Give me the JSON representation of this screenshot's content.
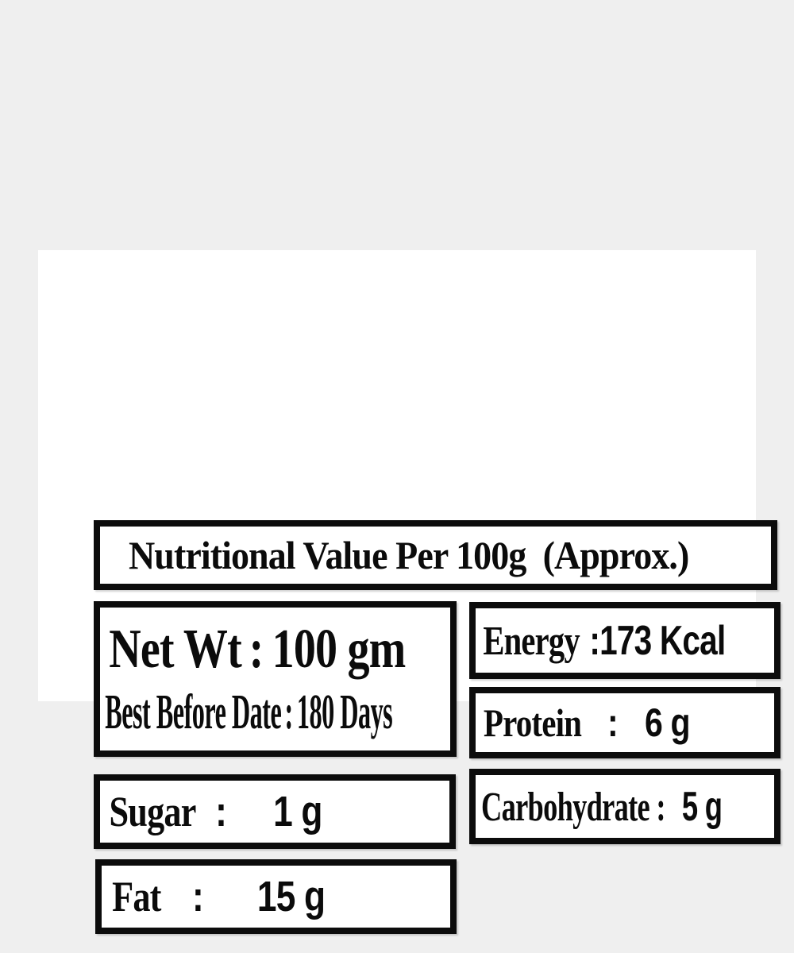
{
  "colors": {
    "page_background": "#efefef",
    "panel_background": "#ffffff",
    "box_border": "#0c0c0c",
    "text": "#0b0b0b"
  },
  "title": "Nutritional Value Per 100g  (Approx.)",
  "net_weight": {
    "label": "Net Wt",
    "colon": ":",
    "value": "100 gm"
  },
  "best_before": {
    "label": "Best Before Date",
    "colon": ":",
    "value": "180 Days"
  },
  "nutrients": {
    "energy": {
      "label": "Energy",
      "colon": ":",
      "value": "173 Kcal"
    },
    "protein": {
      "label": "Protein",
      "colon": ":",
      "value": "6 g"
    },
    "carbohydrate": {
      "label": "Carbohydrate",
      "colon": ":",
      "value": "5 g"
    },
    "sugar": {
      "label": "Sugar",
      "colon": ":",
      "value": "1 g"
    },
    "fat": {
      "label": "Fat",
      "colon": ":",
      "value": "15 g"
    }
  }
}
